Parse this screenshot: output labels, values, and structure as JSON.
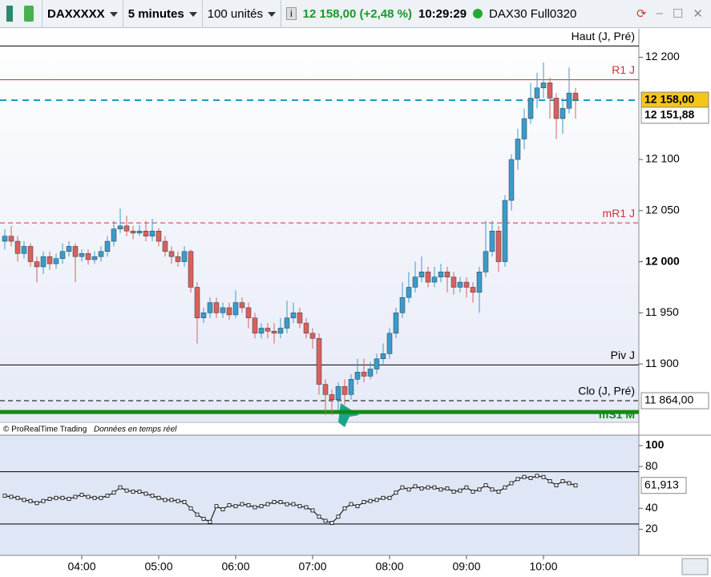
{
  "toolbar": {
    "instrument": "DAXXXXX",
    "period": "5 minutes",
    "units": "100 unités",
    "last": "12 158,00 (+2,48 %)",
    "time": "10:29:29",
    "feed": "DAX30 Full0320"
  },
  "copyright": "© ProRealTime Trading",
  "realtime": "Données en temps réel",
  "chart_data": [
    {
      "type": "candlestick",
      "categories": [
        null,
        null,
        null,
        null,
        null,
        null,
        null,
        null,
        null,
        null,
        null,
        null,
        "04:00",
        null,
        null,
        null,
        null,
        null,
        null,
        null,
        null,
        null,
        null,
        null,
        "05:00",
        null,
        null,
        null,
        null,
        null,
        null,
        null,
        null,
        null,
        null,
        null,
        "06:00",
        null,
        null,
        null,
        null,
        null,
        null,
        null,
        null,
        null,
        null,
        null,
        "07:00",
        null,
        null,
        null,
        null,
        null,
        null,
        null,
        null,
        null,
        null,
        null,
        "08:00",
        null,
        null,
        null,
        null,
        null,
        null,
        null,
        null,
        null,
        null,
        null,
        "09:00",
        null,
        null,
        null,
        null,
        null,
        null,
        null,
        null,
        null,
        null,
        null,
        "10:00",
        null,
        null,
        null,
        null,
        null
      ],
      "open": [
        12020,
        12025,
        12020,
        12008,
        12015,
        12000,
        11995,
        12005,
        11998,
        12003,
        12010,
        12015,
        12005,
        12008,
        12002,
        12005,
        12010,
        12020,
        12032,
        12035,
        12030,
        12028,
        12030,
        12025,
        12030,
        12020,
        12010,
        12005,
        12000,
        12010,
        11975,
        11945,
        11950,
        11960,
        11950,
        11955,
        11948,
        11960,
        11955,
        11945,
        11930,
        11935,
        11932,
        11930,
        11935,
        11945,
        11950,
        11940,
        11930,
        11925,
        11880,
        11870,
        11865,
        11878,
        11870,
        11885,
        11892,
        11888,
        11895,
        11905,
        11910,
        11930,
        11950,
        11965,
        11975,
        11985,
        11990,
        11980,
        11985,
        11990,
        11985,
        11975,
        11980,
        11975,
        11970,
        11990,
        12010,
        12030,
        12000,
        12060,
        12100,
        12120,
        12140,
        12160,
        12170,
        12175,
        12160,
        12140,
        12150,
        12165
      ],
      "high": [
        12032,
        12035,
        12025,
        12020,
        12018,
        12005,
        12010,
        12010,
        12008,
        12018,
        12020,
        12018,
        12012,
        12012,
        12010,
        12015,
        12025,
        12040,
        12052,
        12045,
        12035,
        12036,
        12040,
        12042,
        12033,
        12025,
        12015,
        12010,
        12015,
        12012,
        11980,
        11955,
        11965,
        11965,
        11960,
        11960,
        11972,
        11965,
        11960,
        11950,
        11940,
        11940,
        11940,
        11945,
        11962,
        11960,
        11955,
        11945,
        11935,
        11930,
        11885,
        11875,
        11882,
        11885,
        11890,
        11905,
        11905,
        11902,
        11910,
        11920,
        11935,
        11955,
        11980,
        11990,
        12000,
        12005,
        11995,
        11995,
        11998,
        11995,
        11990,
        11985,
        11985,
        11980,
        11995,
        12040,
        12040,
        12035,
        12065,
        12105,
        12130,
        12150,
        12175,
        12185,
        12195,
        12180,
        12165,
        12160,
        12190,
        12170
      ],
      "low": [
        12012,
        12015,
        12000,
        12003,
        11995,
        11980,
        11988,
        11992,
        11993,
        11998,
        12005,
        11980,
        12000,
        11997,
        11998,
        12000,
        12005,
        12015,
        12028,
        12025,
        12022,
        12025,
        12020,
        12020,
        12015,
        12005,
        11998,
        11995,
        11995,
        11970,
        11920,
        11940,
        11945,
        11945,
        11945,
        11943,
        11945,
        11950,
        11935,
        11925,
        11925,
        11925,
        11920,
        11925,
        11930,
        11940,
        11935,
        11925,
        11915,
        11870,
        11850,
        11850,
        11855,
        11860,
        11865,
        11880,
        11882,
        11885,
        11890,
        11900,
        11905,
        11925,
        11945,
        11960,
        11970,
        11980,
        11975,
        11975,
        11980,
        11970,
        11968,
        11970,
        11965,
        11960,
        11950,
        11985,
        12005,
        11990,
        11995,
        12050,
        12090,
        12110,
        12135,
        12150,
        12160,
        12140,
        12120,
        12125,
        12145,
        12140
      ],
      "close": [
        12025,
        12020,
        12008,
        12015,
        12000,
        11995,
        12005,
        11998,
        12003,
        12010,
        12015,
        12005,
        12008,
        12002,
        12005,
        12010,
        12020,
        12032,
        12035,
        12030,
        12028,
        12030,
        12025,
        12030,
        12020,
        12010,
        12005,
        12000,
        12010,
        11975,
        11945,
        11950,
        11960,
        11950,
        11955,
        11948,
        11960,
        11955,
        11945,
        11930,
        11935,
        11932,
        11930,
        11935,
        11945,
        11950,
        11940,
        11930,
        11925,
        11880,
        11870,
        11865,
        11878,
        11870,
        11885,
        11892,
        11888,
        11895,
        11905,
        11910,
        11930,
        11950,
        11965,
        11975,
        11985,
        11990,
        11980,
        11985,
        11990,
        11985,
        11975,
        11980,
        11975,
        11970,
        11990,
        12010,
        12030,
        12000,
        12060,
        12100,
        12120,
        12140,
        12160,
        12170,
        12175,
        12160,
        12140,
        12150,
        12165,
        12158
      ],
      "up_color": "#3b9bc8",
      "down_color": "#d9605c",
      "ylim": [
        11846,
        12227
      ],
      "yticks": [
        {
          "value": 11900,
          "label": "11 900"
        },
        {
          "value": 11950,
          "label": "11 950"
        },
        {
          "value": 12000,
          "label": "12 000"
        },
        {
          "value": 12050,
          "label": "12 050"
        },
        {
          "value": 12100,
          "label": "12 100"
        },
        {
          "value": 12200,
          "label": "12 200"
        }
      ],
      "levels": [
        {
          "name": "Haut (J, Pré)",
          "value": 12211,
          "color": "#000000"
        },
        {
          "name": "R1 J",
          "value": 12178,
          "color": "#d0303a"
        },
        {
          "value": 12158,
          "value_label": "12 158,00",
          "color": "#1a9bc8",
          "dash": true
        },
        {
          "name": "mR1 J",
          "value": 12038,
          "color": "#d0303a",
          "dash": true
        },
        {
          "name": "Piv J",
          "value": 11899,
          "color": "#000000"
        },
        {
          "name": "Clo (J, Pré)",
          "value": 11864,
          "value_label": "11 864,00",
          "color": "#000000",
          "dash": true
        },
        {
          "name": "mS1 M",
          "value": 11853,
          "color": "#148a14"
        }
      ],
      "price_tags": [
        {
          "value": 12151.88,
          "value_label": "12 151,88"
        }
      ]
    },
    {
      "type": "line",
      "color": "#000000",
      "values": [
        52,
        51,
        50,
        48,
        47,
        45,
        47,
        49,
        50,
        50,
        49,
        51,
        53,
        51,
        50,
        50,
        52,
        55,
        60,
        57,
        56,
        56,
        54,
        52,
        50,
        48,
        48,
        47,
        46,
        40,
        34,
        30,
        27,
        42,
        39,
        43,
        42,
        44,
        43,
        41,
        42,
        44,
        46,
        46,
        44,
        44,
        42,
        41,
        38,
        32,
        28,
        26,
        32,
        40,
        44,
        42,
        46,
        47,
        48,
        50,
        50,
        55,
        60,
        58,
        61,
        59,
        60,
        60,
        58,
        59,
        56,
        57,
        60,
        56,
        58,
        62,
        58,
        56,
        60,
        64,
        68,
        70,
        69,
        71,
        70,
        66,
        62,
        66,
        64,
        61.913
      ],
      "value_labels": {
        "89": "61,913"
      },
      "ylim": [
        -5,
        110
      ],
      "yticks": [
        20,
        40,
        80,
        100
      ],
      "levels": [
        25,
        75
      ]
    }
  ]
}
